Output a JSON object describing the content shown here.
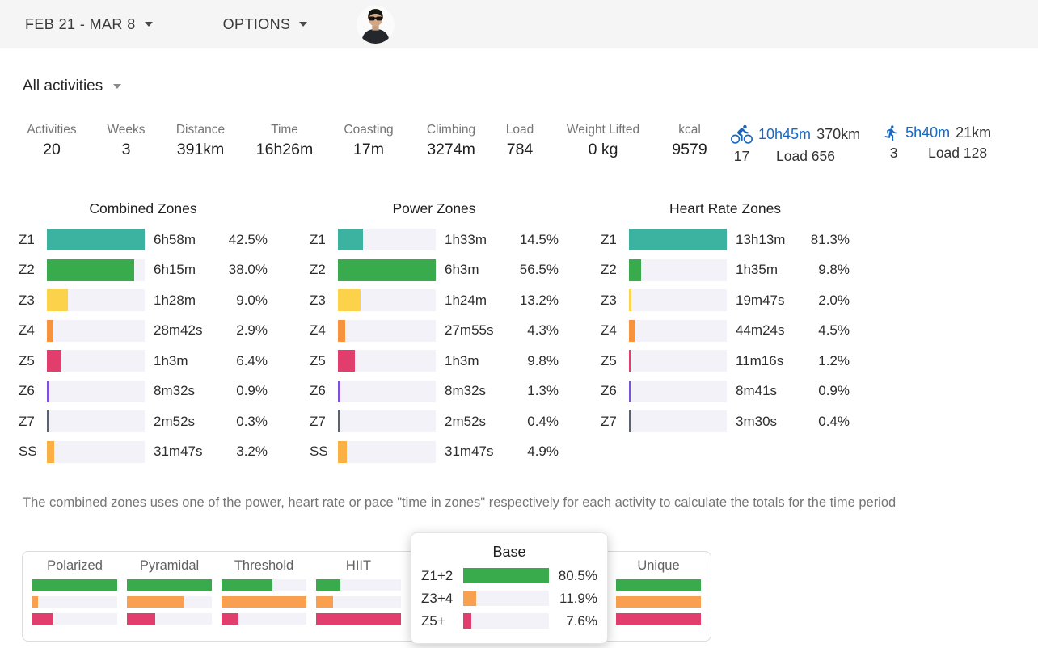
{
  "topbar": {
    "date_range": "FEB 21 - MAR 8",
    "options": "OPTIONS"
  },
  "filter": {
    "label": "All activities"
  },
  "stats": [
    {
      "label": "Activities",
      "value": "20"
    },
    {
      "label": "Weeks",
      "value": "3"
    },
    {
      "label": "Distance",
      "value": "391km"
    },
    {
      "label": "Time",
      "value": "16h26m"
    },
    {
      "label": "Coasting",
      "value": "17m"
    },
    {
      "label": "Climbing",
      "value": "3274m"
    },
    {
      "label": "Load",
      "value": "784"
    },
    {
      "label": "Weight Lifted",
      "value": "0 kg"
    },
    {
      "label": "kcal",
      "value": "9579"
    }
  ],
  "sports": {
    "ride": {
      "icon": "bike-icon",
      "time": "10h45m",
      "distance": "370km",
      "count": "17",
      "load": "Load 656"
    },
    "run": {
      "icon": "runner-icon",
      "time": "5h40m",
      "distance": "21km",
      "count": "3",
      "load": "Load 128"
    }
  },
  "note": "The combined zones uses one of the power, heart rate or pace \"time in zones\" respectively for each activity to calculate the totals for the time period",
  "colors": {
    "accent_blue": "#1a67c2",
    "topbar_bg": "#f5f5f5",
    "track_bg": "#f2f2f8",
    "zone_colors": {
      "Z1": "#3cb2a1",
      "Z2": "#3aab4c",
      "Z3": "#fcd24b",
      "Z4": "#f7933f",
      "Z5": "#e23e6d",
      "Z6": "#7c52d6",
      "Z7": "#59626e",
      "SS": "#fbb044"
    },
    "style_series": [
      "#3aab4c",
      "#f9a050",
      "#e23e6d"
    ]
  },
  "chart_data": [
    {
      "kind": "zones",
      "type": "bar",
      "title": "Combined Zones",
      "zones": [
        "Z1",
        "Z2",
        "Z3",
        "Z4",
        "Z5",
        "Z6",
        "Z7",
        "SS"
      ],
      "times": [
        "6h58m",
        "6h15m",
        "1h28m",
        "28m42s",
        "1h3m",
        "8m32s",
        "2m52s",
        "31m47s"
      ],
      "percents": [
        42.5,
        38.0,
        9.0,
        2.9,
        6.4,
        0.9,
        0.3,
        3.2
      ],
      "percent_labels": [
        "42.5%",
        "38.0%",
        "9.0%",
        "2.9%",
        "6.4%",
        "0.9%",
        "0.3%",
        "3.2%"
      ],
      "scaling": "bars scaled relative to max percent"
    },
    {
      "kind": "zones",
      "type": "bar",
      "title": "Power Zones",
      "zones": [
        "Z1",
        "Z2",
        "Z3",
        "Z4",
        "Z5",
        "Z6",
        "Z7",
        "SS"
      ],
      "times": [
        "1h33m",
        "6h3m",
        "1h24m",
        "27m55s",
        "1h3m",
        "8m32s",
        "2m52s",
        "31m47s"
      ],
      "percents": [
        14.5,
        56.5,
        13.2,
        4.3,
        9.8,
        1.3,
        0.4,
        4.9
      ],
      "percent_labels": [
        "14.5%",
        "56.5%",
        "13.2%",
        "4.3%",
        "9.8%",
        "1.3%",
        "0.4%",
        "4.9%"
      ],
      "scaling": "bars scaled relative to max percent"
    },
    {
      "kind": "zones",
      "type": "bar",
      "title": "Heart Rate Zones",
      "zones": [
        "Z1",
        "Z2",
        "Z3",
        "Z4",
        "Z5",
        "Z6",
        "Z7"
      ],
      "times": [
        "13h13m",
        "1h35m",
        "19m47s",
        "44m24s",
        "11m16s",
        "8m41s",
        "3m30s"
      ],
      "percents": [
        81.3,
        9.8,
        2.0,
        4.5,
        1.2,
        0.9,
        0.4
      ],
      "percent_labels": [
        "81.3%",
        "9.8%",
        "2.0%",
        "4.5%",
        "1.2%",
        "0.9%",
        "0.4%"
      ],
      "scaling": "bars scaled relative to max percent"
    },
    {
      "kind": "styles",
      "type": "bar",
      "charts": [
        {
          "label": "Polarized",
          "values": [
            100,
            7,
            24
          ]
        },
        {
          "label": "Pyramidal",
          "values": [
            100,
            67,
            33
          ]
        },
        {
          "label": "Threshold",
          "values": [
            60,
            100,
            20
          ]
        },
        {
          "label": "HIIT",
          "values": [
            29,
            20,
            100
          ]
        },
        {
          "label": "",
          "hidden": true,
          "values": []
        },
        {
          "label": "Unique",
          "values": [
            100,
            100,
            100
          ]
        }
      ]
    },
    {
      "kind": "popup",
      "type": "bar",
      "title": "Base",
      "rows": [
        {
          "label": "Z1+2",
          "pct": 80.5,
          "pct_label": "80.5%",
          "color": "#3aab4c"
        },
        {
          "label": "Z3+4",
          "pct": 11.9,
          "pct_label": "11.9%",
          "color": "#f9a050"
        },
        {
          "label": "Z5+",
          "pct": 7.6,
          "pct_label": "7.6%",
          "color": "#e23e6d"
        }
      ]
    }
  ]
}
